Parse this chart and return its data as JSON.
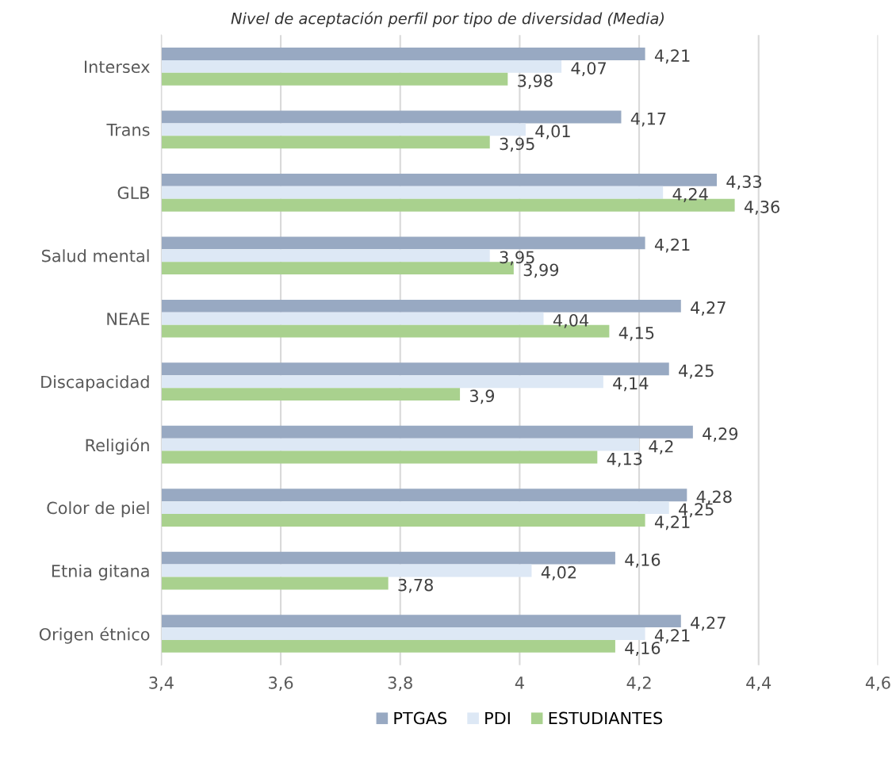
{
  "chart_data": {
    "type": "bar",
    "orientation": "horizontal",
    "title": "Nivel de aceptación perfil por tipo de diversidad (Media)",
    "categories": [
      "Intersex",
      "Trans",
      "GLB",
      "Salud mental",
      "NEAE",
      "Discapacidad",
      "Religión",
      "Color de piel",
      "Etnia gitana",
      "Origen étnico"
    ],
    "series": [
      {
        "name": "PTGAS",
        "color": "#98a9c2",
        "values": [
          4.21,
          4.17,
          4.33,
          4.21,
          4.27,
          4.25,
          4.29,
          4.28,
          4.16,
          4.27
        ],
        "value_labels": [
          "4,21",
          "4,17",
          "4,33",
          "4,21",
          "4,27",
          "4,25",
          "4,29",
          "4,28",
          "4,16",
          "4,27"
        ]
      },
      {
        "name": "PDI",
        "color": "#dde8f5",
        "values": [
          4.07,
          4.01,
          4.24,
          3.95,
          4.04,
          4.14,
          4.2,
          4.25,
          4.02,
          4.21
        ],
        "value_labels": [
          "4,07",
          "4,01",
          "4,24",
          "3,95",
          "4,04",
          "4,14",
          "4,2",
          "4,25",
          "4,02",
          "4,21"
        ]
      },
      {
        "name": "ESTUDIANTES",
        "color": "#a9d18e",
        "values": [
          3.98,
          3.95,
          4.36,
          3.99,
          4.15,
          3.9,
          4.13,
          4.21,
          3.78,
          4.16
        ],
        "value_labels": [
          "3,98",
          "3,95",
          "4,36",
          "3,99",
          "4,15",
          "3,9",
          "4,13",
          "4,21",
          "3,78",
          "4,16"
        ]
      }
    ],
    "xlim": [
      3.4,
      4.6
    ],
    "xticks": [
      {
        "value": 3.4,
        "label": "3,4"
      },
      {
        "value": 3.6,
        "label": "3,6"
      },
      {
        "value": 3.8,
        "label": "3,8"
      },
      4,
      {
        "value": 4.2,
        "label": "4,2"
      },
      {
        "value": 4.4,
        "label": "4,4"
      },
      {
        "value": 4.6,
        "label": "4,6"
      }
    ],
    "grid": "x",
    "legend": "bottom"
  }
}
